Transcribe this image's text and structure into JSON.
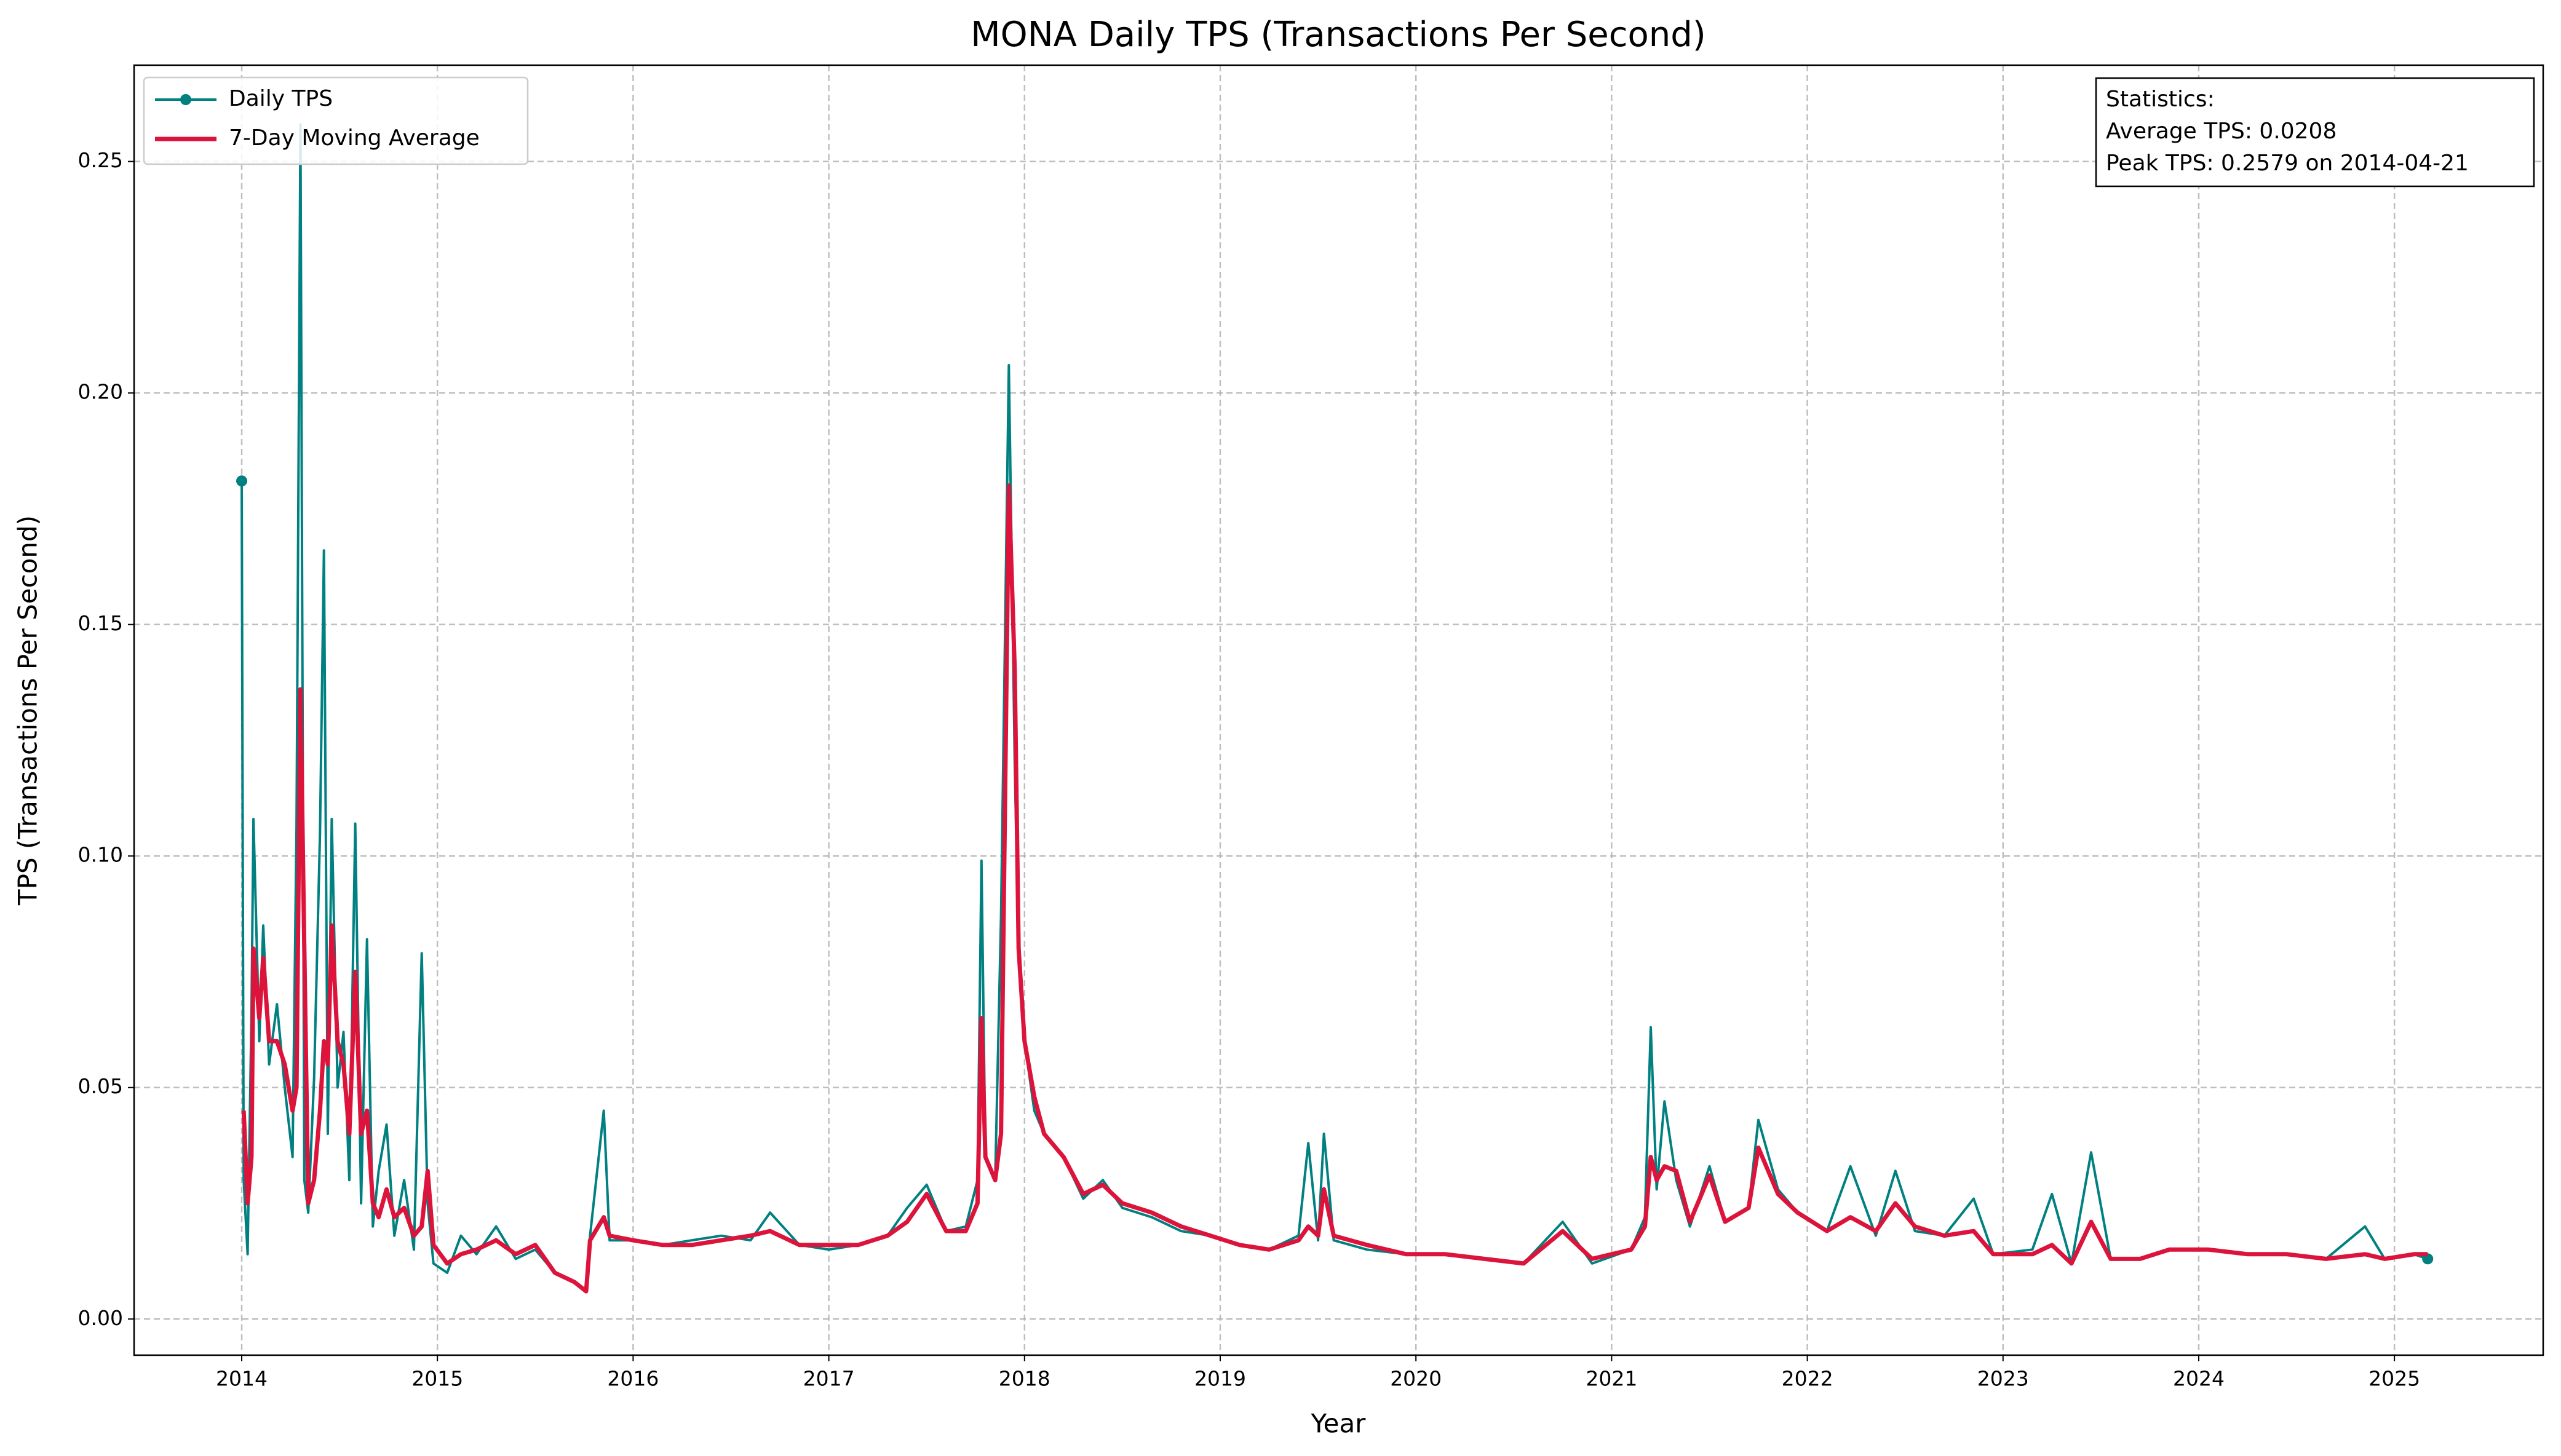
{
  "chart_data": {
    "type": "line",
    "title": "MONA Daily TPS (Transactions Per Second)",
    "x_label": "Year",
    "y_label": "TPS (Transactions Per Second)",
    "x": [
      2014.0,
      2014.01,
      2014.03,
      2014.05,
      2014.06,
      2014.09,
      2014.11,
      2014.14,
      2014.18,
      2014.22,
      2014.26,
      2014.28,
      2014.3,
      2014.32,
      2014.34,
      2014.37,
      2014.4,
      2014.42,
      2014.44,
      2014.46,
      2014.49,
      2014.52,
      2014.55,
      2014.58,
      2014.61,
      2014.64,
      2014.67,
      2014.7,
      2014.74,
      2014.78,
      2014.83,
      2014.88,
      2014.92,
      2014.95,
      2014.98,
      2015.05,
      2015.12,
      2015.2,
      2015.3,
      2015.4,
      2015.5,
      2015.6,
      2015.7,
      2015.76,
      2015.78,
      2015.85,
      2015.88,
      2016.0,
      2016.15,
      2016.3,
      2016.45,
      2016.6,
      2016.7,
      2016.85,
      2017.0,
      2017.15,
      2017.3,
      2017.4,
      2017.5,
      2017.6,
      2017.7,
      2017.76,
      2017.78,
      2017.8,
      2017.85,
      2017.88,
      2017.92,
      2017.95,
      2017.97,
      2018.0,
      2018.05,
      2018.1,
      2018.2,
      2018.3,
      2018.4,
      2018.5,
      2018.65,
      2018.8,
      2018.95,
      2019.1,
      2019.25,
      2019.4,
      2019.45,
      2019.5,
      2019.53,
      2019.58,
      2019.75,
      2019.95,
      2020.15,
      2020.35,
      2020.55,
      2020.75,
      2020.9,
      2021.1,
      2021.17,
      2021.2,
      2021.23,
      2021.27,
      2021.33,
      2021.4,
      2021.5,
      2021.58,
      2021.7,
      2021.75,
      2021.85,
      2021.95,
      2022.1,
      2022.22,
      2022.35,
      2022.45,
      2022.55,
      2022.7,
      2022.85,
      2022.95,
      2023.15,
      2023.25,
      2023.35,
      2023.45,
      2023.55,
      2023.7,
      2023.85,
      2024.05,
      2024.25,
      2024.45,
      2024.65,
      2024.85,
      2024.95,
      2025.1,
      2025.17
    ],
    "series": [
      {
        "name": "Daily TPS",
        "color": "#008080",
        "values": [
          0.181,
          0.03,
          0.014,
          0.066,
          0.108,
          0.06,
          0.085,
          0.055,
          0.068,
          0.05,
          0.035,
          0.106,
          0.258,
          0.03,
          0.023,
          0.052,
          0.105,
          0.166,
          0.04,
          0.108,
          0.05,
          0.062,
          0.03,
          0.107,
          0.025,
          0.082,
          0.02,
          0.032,
          0.042,
          0.018,
          0.03,
          0.015,
          0.079,
          0.025,
          0.012,
          0.01,
          0.018,
          0.014,
          0.02,
          0.013,
          0.015,
          0.01,
          0.008,
          0.006,
          0.018,
          0.045,
          0.017,
          0.017,
          0.016,
          0.017,
          0.018,
          0.017,
          0.023,
          0.016,
          0.015,
          0.016,
          0.018,
          0.024,
          0.029,
          0.019,
          0.02,
          0.03,
          0.099,
          0.035,
          0.03,
          0.087,
          0.206,
          0.12,
          0.08,
          0.06,
          0.045,
          0.04,
          0.035,
          0.026,
          0.03,
          0.024,
          0.022,
          0.019,
          0.018,
          0.016,
          0.015,
          0.018,
          0.038,
          0.017,
          0.04,
          0.017,
          0.015,
          0.014,
          0.014,
          0.013,
          0.012,
          0.021,
          0.012,
          0.015,
          0.022,
          0.063,
          0.028,
          0.047,
          0.03,
          0.02,
          0.033,
          0.021,
          0.024,
          0.043,
          0.028,
          0.023,
          0.019,
          0.033,
          0.018,
          0.032,
          0.019,
          0.018,
          0.026,
          0.014,
          0.015,
          0.027,
          0.012,
          0.036,
          0.013,
          0.013,
          0.015,
          0.015,
          0.014,
          0.014,
          0.013,
          0.02,
          0.013,
          0.014,
          0.013
        ]
      },
      {
        "name": "7-Day Moving Average",
        "color": "#dc143c",
        "values": [
          null,
          0.045,
          0.025,
          0.035,
          0.08,
          0.065,
          0.078,
          0.06,
          0.06,
          0.055,
          0.045,
          0.05,
          0.136,
          0.08,
          0.025,
          0.03,
          0.045,
          0.06,
          0.055,
          0.085,
          0.06,
          0.055,
          0.04,
          0.075,
          0.04,
          0.045,
          0.025,
          0.022,
          0.028,
          0.022,
          0.024,
          0.018,
          0.02,
          0.032,
          0.016,
          0.012,
          0.014,
          0.015,
          0.017,
          0.014,
          0.016,
          0.01,
          0.008,
          0.006,
          0.017,
          0.022,
          0.018,
          0.017,
          0.016,
          0.016,
          0.017,
          0.018,
          0.019,
          0.016,
          0.016,
          0.016,
          0.018,
          0.021,
          0.027,
          0.019,
          0.019,
          0.025,
          0.065,
          0.035,
          0.03,
          0.04,
          0.18,
          0.14,
          0.08,
          0.06,
          0.048,
          0.04,
          0.035,
          0.027,
          0.029,
          0.025,
          0.023,
          0.02,
          0.018,
          0.016,
          0.015,
          0.017,
          0.02,
          0.018,
          0.028,
          0.018,
          0.016,
          0.014,
          0.014,
          0.013,
          0.012,
          0.019,
          0.013,
          0.015,
          0.02,
          0.035,
          0.03,
          0.033,
          0.032,
          0.021,
          0.031,
          0.021,
          0.024,
          0.037,
          0.027,
          0.023,
          0.019,
          0.022,
          0.019,
          0.025,
          0.02,
          0.018,
          0.019,
          0.014,
          0.014,
          0.016,
          0.012,
          0.021,
          0.013,
          0.013,
          0.015,
          0.015,
          0.014,
          0.014,
          0.013,
          0.014,
          0.013,
          0.014,
          0.014
        ]
      }
    ],
    "xlim": [
      2013.45,
      2025.76
    ],
    "ylim": [
      -0.0078,
      0.2708
    ],
    "xticks": [
      2014,
      2015,
      2016,
      2017,
      2018,
      2019,
      2020,
      2021,
      2022,
      2023,
      2024,
      2025
    ],
    "yticks": [
      {
        "value": 0,
        "label": "0.00"
      },
      0.05,
      {
        "value": 0.1,
        "label": "0.10"
      },
      0.15,
      {
        "value": 0.2,
        "label": "0.20"
      },
      0.25
    ],
    "grid": true,
    "legend": "upper left",
    "annotation": [
      "Statistics:",
      "Average TPS: 0.0208",
      "Peak TPS: 0.2579 on 2014-04-21"
    ]
  }
}
